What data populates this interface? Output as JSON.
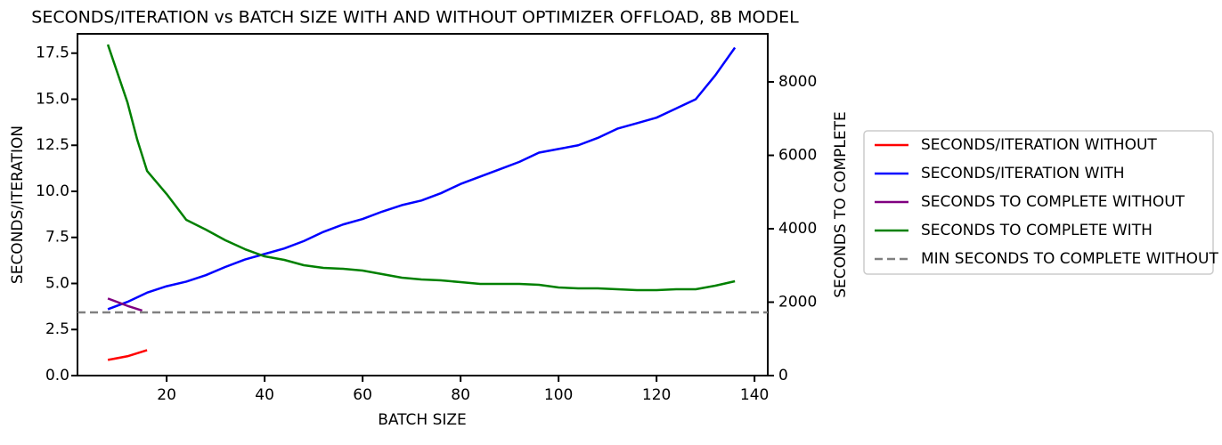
{
  "chart_data": {
    "type": "line",
    "title": "SECONDS/ITERATION vs BATCH SIZE WITH AND WITHOUT OPTIMIZER OFFLOAD, 8B MODEL",
    "x_label": "BATCH SIZE",
    "y_label": "SECONDS/ITERATION",
    "y2_label": "SECONDS TO COMPLETE",
    "xlim": [
      1.8,
      142.7
    ],
    "ylim": [
      0,
      18.55
    ],
    "y2lim": [
      0,
      9310
    ],
    "xticks": [
      20,
      40,
      60,
      80,
      100,
      120,
      140
    ],
    "yticks": [
      {
        "value": 0,
        "label": "0.0"
      },
      {
        "value": 2.5,
        "label": "2.5"
      },
      {
        "value": 5,
        "label": "5.0"
      },
      {
        "value": 7.5,
        "label": "7.5"
      },
      {
        "value": 10,
        "label": "10.0"
      },
      {
        "value": 12.5,
        "label": "12.5"
      },
      {
        "value": 15,
        "label": "15.0"
      },
      {
        "value": 17.5,
        "label": "17.5"
      }
    ],
    "y2ticks": [
      0,
      2000,
      4000,
      6000,
      8000
    ],
    "legend": "right",
    "series": [
      {
        "name": "SECONDS/ITERATION WITHOUT",
        "color": "#ff0000",
        "x": [
          8,
          12,
          16
        ],
        "values": [
          0.85,
          1.05,
          1.38
        ]
      },
      {
        "name": "SECONDS/ITERATION WITH",
        "color": "#0000ff",
        "x": [
          8,
          12,
          16,
          20,
          24,
          28,
          32,
          36,
          40,
          44,
          48,
          52,
          56,
          60,
          64,
          68,
          72,
          76,
          80,
          84,
          88,
          92,
          96,
          100,
          104,
          108,
          112,
          116,
          120,
          124,
          128,
          132,
          136
        ],
        "values": [
          3.6,
          4.0,
          4.5,
          4.85,
          5.1,
          5.45,
          5.9,
          6.3,
          6.6,
          6.9,
          7.3,
          7.8,
          8.2,
          8.5,
          8.9,
          9.25,
          9.5,
          9.9,
          10.4,
          10.8,
          11.2,
          11.6,
          12.1,
          12.3,
          12.5,
          12.9,
          13.4,
          13.7,
          14.0,
          14.5,
          15.0,
          16.3,
          17.8
        ]
      },
      {
        "name": "SECONDS TO COMPLETE WITHOUT",
        "color": "#800080",
        "axis": "y2",
        "x": [
          8,
          12,
          15
        ],
        "values": [
          2100,
          1900,
          1770
        ]
      },
      {
        "name": "SECONDS TO COMPLETE WITH",
        "color": "#008000",
        "axis": "y2",
        "x": [
          8,
          12,
          14,
          16,
          20,
          24,
          28,
          32,
          36,
          40,
          44,
          48,
          52,
          56,
          60,
          64,
          68,
          72,
          76,
          80,
          84,
          88,
          92,
          96,
          100,
          104,
          108,
          112,
          116,
          120,
          124,
          128,
          132,
          136
        ],
        "values": [
          9018,
          7442,
          6424,
          5576,
          4945,
          4242,
          3976,
          3685,
          3442,
          3248,
          3152,
          3006,
          2933,
          2909,
          2861,
          2764,
          2667,
          2618,
          2594,
          2545,
          2497,
          2497,
          2497,
          2473,
          2400,
          2376,
          2376,
          2352,
          2327,
          2327,
          2352,
          2352,
          2448,
          2570
        ]
      },
      {
        "name": "MIN SECONDS TO COMPLETE WITHOUT",
        "color": "#808080",
        "axis": "y2",
        "linestyle": "dashed",
        "values": [
          1720
        ]
      }
    ]
  }
}
